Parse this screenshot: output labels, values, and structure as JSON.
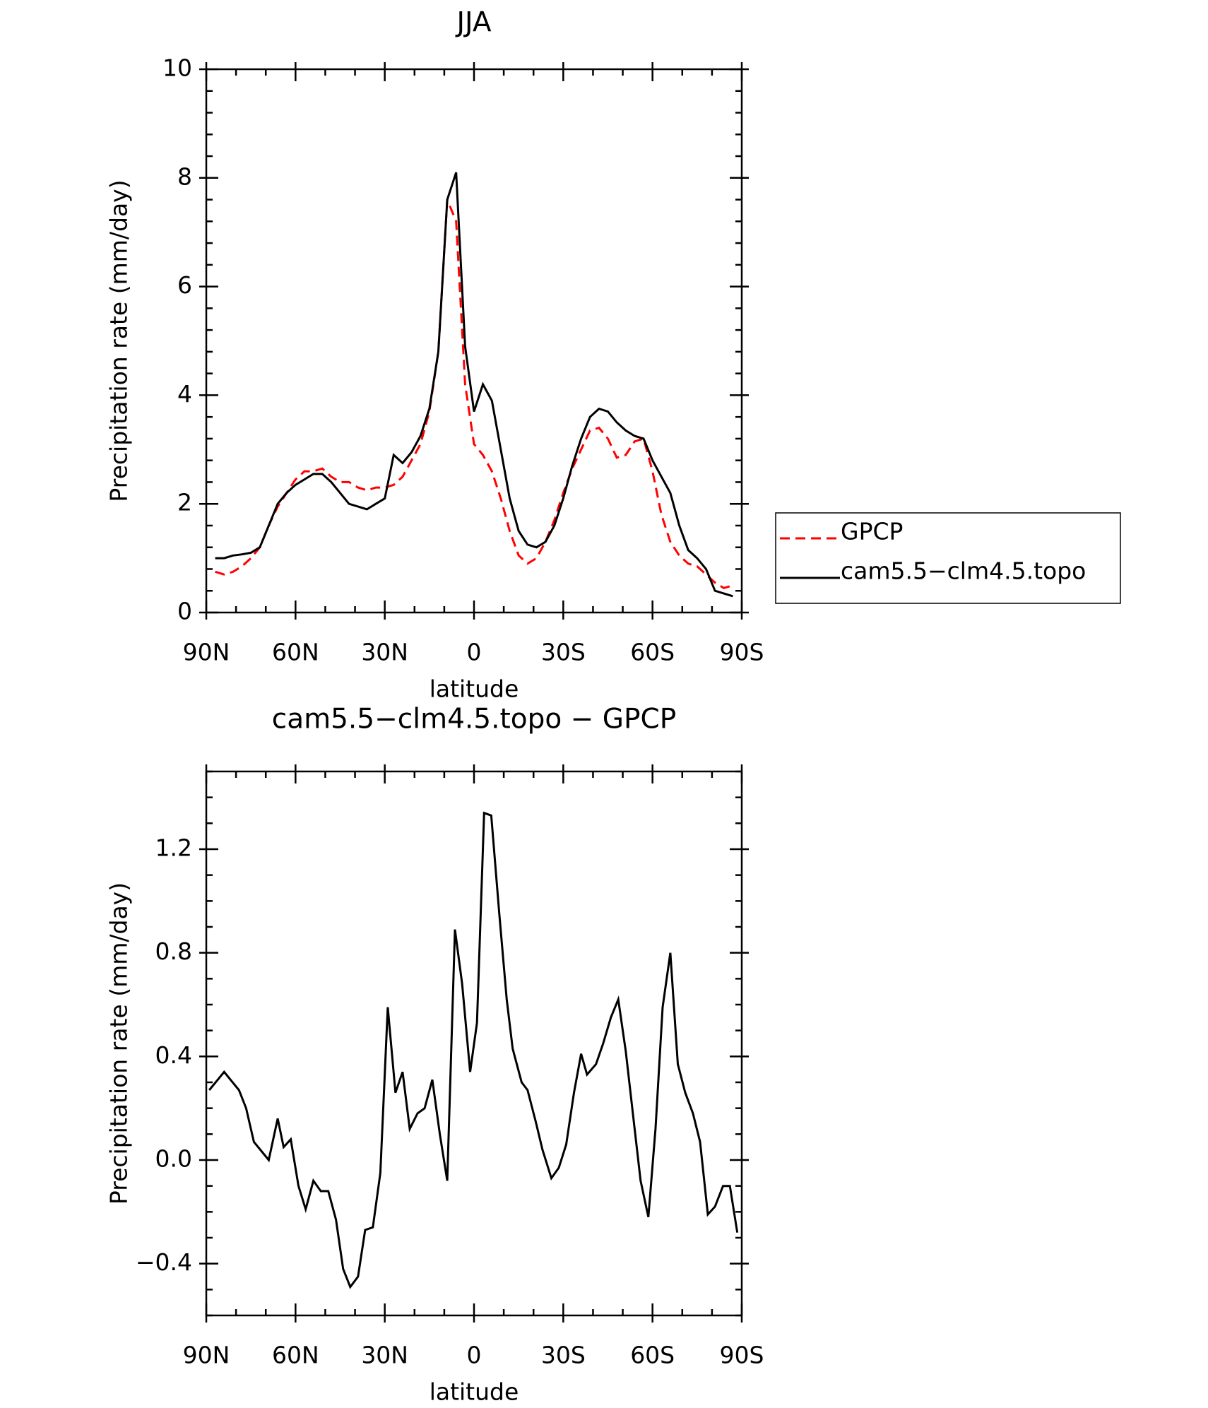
{
  "chart_data": [
    {
      "type": "line",
      "title": "JJA",
      "xlabel": "latitude",
      "ylabel": "Precipitation rate (mm/day)",
      "x": [
        87,
        84,
        81,
        78,
        75,
        72,
        69,
        66,
        63,
        60,
        57,
        54,
        51,
        48,
        45,
        42,
        39,
        36,
        33,
        30,
        27,
        24,
        21,
        18,
        15,
        12,
        9,
        6,
        3,
        0,
        -3,
        -6,
        -9,
        -12,
        -15,
        -18,
        -21,
        -24,
        -27,
        -30,
        -33,
        -36,
        -39,
        -42,
        -45,
        -48,
        -51,
        -54,
        -57,
        -60,
        -63,
        -66,
        -69,
        -72,
        -75,
        -78,
        -81,
        -84,
        -87
      ],
      "series": [
        {
          "name": "GPCP",
          "color": "#ff0000",
          "style": "dashed",
          "values": [
            0.75,
            0.7,
            0.75,
            0.85,
            1.0,
            1.2,
            1.6,
            1.95,
            2.2,
            2.45,
            2.6,
            2.6,
            2.65,
            2.5,
            2.4,
            2.4,
            2.3,
            2.25,
            2.3,
            2.3,
            2.35,
            2.5,
            2.8,
            3.1,
            3.7,
            4.8,
            7.6,
            7.2,
            4.2,
            3.1,
            2.9,
            2.6,
            2.1,
            1.5,
            1.05,
            0.9,
            1.0,
            1.3,
            1.7,
            2.2,
            2.65,
            3.0,
            3.35,
            3.4,
            3.2,
            2.85,
            2.9,
            3.15,
            3.2,
            2.6,
            1.8,
            1.3,
            1.05,
            0.9,
            0.85,
            0.7,
            0.55,
            0.45,
            0.5
          ]
        },
        {
          "name": "cam5.5−clm4.5.topo",
          "color": "#000000",
          "style": "solid",
          "values": [
            1.0,
            1.0,
            1.05,
            1.07,
            1.1,
            1.2,
            1.6,
            2.0,
            2.2,
            2.35,
            2.45,
            2.55,
            2.55,
            2.4,
            2.2,
            2.0,
            1.95,
            1.9,
            2.0,
            2.1,
            2.9,
            2.75,
            2.95,
            3.25,
            3.75,
            4.8,
            7.6,
            8.1,
            4.9,
            3.7,
            4.2,
            3.9,
            3.0,
            2.1,
            1.5,
            1.25,
            1.2,
            1.3,
            1.6,
            2.1,
            2.7,
            3.2,
            3.6,
            3.75,
            3.7,
            3.5,
            3.35,
            3.25,
            3.2,
            2.8,
            2.5,
            2.2,
            1.6,
            1.15,
            1.0,
            0.8,
            0.4,
            0.35,
            0.3
          ]
        }
      ],
      "xlim": [
        90,
        -90
      ],
      "xticks": [
        {
          "value": 90,
          "label": "90N"
        },
        {
          "value": 60,
          "label": "60N"
        },
        {
          "value": 30,
          "label": "30N"
        },
        0,
        {
          "value": -30,
          "label": "30S"
        },
        {
          "value": -60,
          "label": "60S"
        },
        {
          "value": -90,
          "label": "90S"
        }
      ],
      "ylim": [
        0,
        10
      ],
      "yticks": [
        0,
        2,
        4,
        6,
        8,
        10
      ],
      "legend": "right"
    },
    {
      "type": "line",
      "title": "cam5.5−clm4.5.topo − GPCP",
      "xlabel": "latitude",
      "ylabel": "Precipitation rate (mm/day)",
      "x": [
        89,
        84,
        79,
        76.6,
        74,
        69,
        66,
        64,
        61.6,
        59,
        56.6,
        54,
        51.5,
        49,
        46.4,
        44,
        41.6,
        39,
        36.6,
        34,
        31.5,
        29,
        26.4,
        24,
        21.6,
        19,
        16.6,
        14,
        11.5,
        9,
        6.4,
        4,
        1.3,
        -1,
        -3.4,
        -5.8,
        -8.5,
        -11,
        -13,
        -16,
        -18,
        -20.7,
        -23,
        -26,
        -28.5,
        -31,
        -33.6,
        -36,
        -38,
        -41,
        -43.4,
        -46,
        -48.5,
        -51,
        -53.6,
        -56,
        -58.6,
        -61,
        -63.4,
        -66,
        -68.5,
        -71,
        -73.6,
        -76,
        -78.6,
        -81,
        -83.7,
        -86,
        -88.5
      ],
      "series": [
        {
          "color": "#000000",
          "style": "solid",
          "values": [
            0.27,
            0.34,
            0.27,
            0.2,
            0.07,
            0.0,
            0.16,
            0.05,
            0.08,
            -0.1,
            -0.19,
            -0.08,
            -0.12,
            -0.12,
            -0.23,
            -0.42,
            -0.49,
            -0.45,
            -0.27,
            -0.26,
            -0.05,
            0.59,
            0.26,
            0.34,
            0.12,
            0.18,
            0.2,
            0.31,
            0.1,
            -0.08,
            0.89,
            0.68,
            0.34,
            0.53,
            1.34,
            1.33,
            0.95,
            0.62,
            0.43,
            0.3,
            0.27,
            0.15,
            0.04,
            -0.07,
            -0.03,
            0.06,
            0.26,
            0.41,
            0.33,
            0.37,
            0.45,
            0.55,
            0.62,
            0.42,
            0.16,
            -0.08,
            -0.22,
            0.12,
            0.59,
            0.8,
            0.37,
            0.26,
            0.18,
            0.07,
            -0.21,
            -0.18,
            -0.1,
            -0.1,
            -0.28
          ]
        }
      ],
      "xlim": [
        90,
        -90
      ],
      "xticks": [
        {
          "value": 90,
          "label": "90N"
        },
        {
          "value": 60,
          "label": "60N"
        },
        {
          "value": 30,
          "label": "30N"
        },
        0,
        {
          "value": -30,
          "label": "30S"
        },
        {
          "value": -60,
          "label": "60S"
        },
        {
          "value": -90,
          "label": "90S"
        }
      ],
      "ylim": [
        -0.6,
        1.5
      ],
      "yticks": [
        {
          "value": -0.4,
          "label": "−0.4"
        },
        {
          "value": 0,
          "label": "0.0"
        },
        0.4,
        0.8,
        1.2
      ]
    }
  ]
}
